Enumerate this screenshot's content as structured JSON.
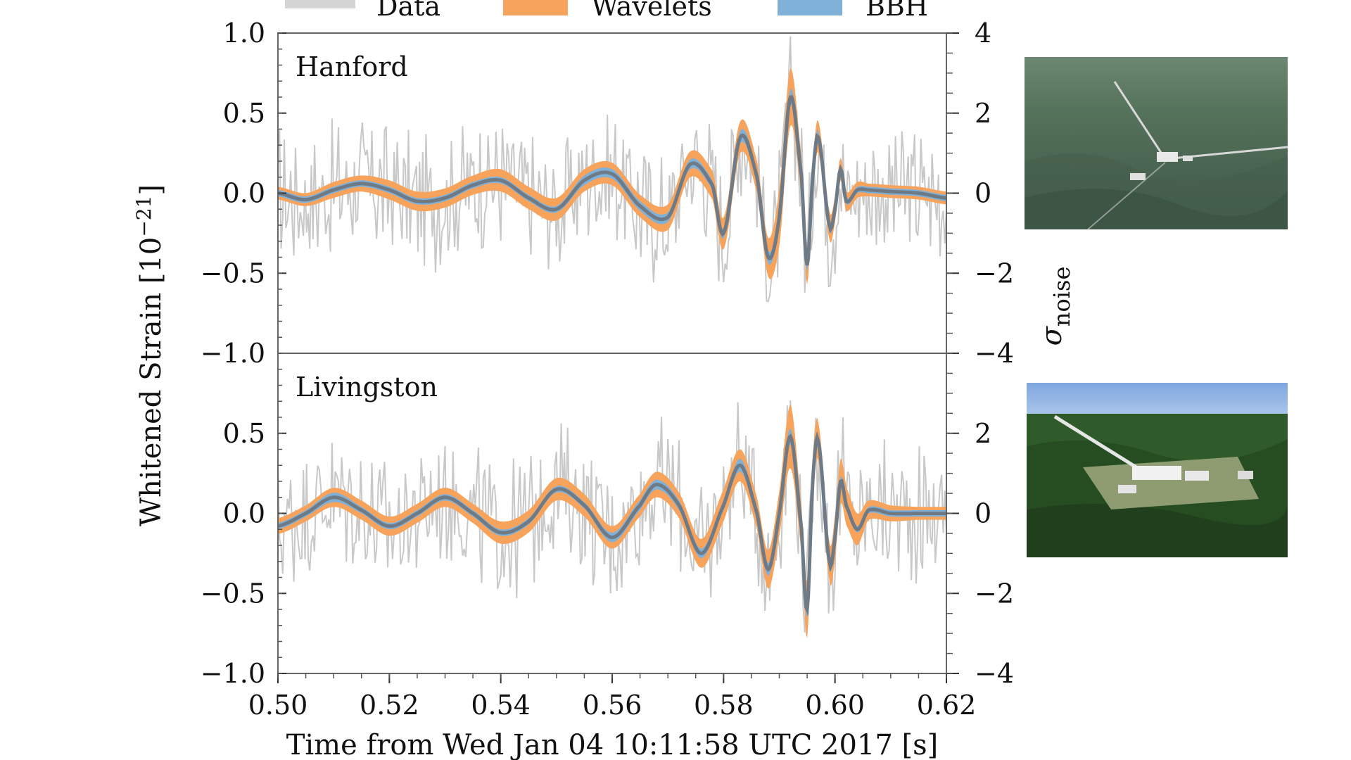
{
  "chart_data": {
    "type": "line",
    "legend": {
      "placement": "top",
      "entries": [
        {
          "name": "Data",
          "color": "#c8c8c8"
        },
        {
          "name": "Wavelets",
          "color": "#f7a35c"
        },
        {
          "name": "BBH",
          "color": "#7fb0d8"
        }
      ]
    },
    "xlabel": "Time from Wed Jan 04 10:11:58 UTC 2017 [s]",
    "ylabel": "Whitened Strain [10",
    "ylabel_exponent": "−21",
    "ylabel_suffix": "]",
    "right_ylabel": "σ",
    "right_ylabel_subscript": "noise",
    "xlim": [
      0.5,
      0.62
    ],
    "x_ticks": [
      "0.50",
      "0.52",
      "0.54",
      "0.56",
      "0.58",
      "0.60",
      "0.62"
    ],
    "grid": false,
    "colors": {
      "data": "#c8c8c8",
      "wavelets": "#f7a35c",
      "bbh": "#7fb0d8",
      "median": "#6e7b86"
    },
    "panels": [
      {
        "name": "Hanford",
        "ylim": [
          -1.0,
          1.0
        ],
        "y_ticks": [
          "1.0",
          "0.5",
          "0.0",
          "−0.5",
          "−1.0"
        ],
        "right_ylim": [
          -4,
          4
        ],
        "right_ticks": [
          "4",
          "2",
          "0",
          "−2",
          "−4"
        ],
        "signal": {
          "x": [
            0.5,
            0.505,
            0.51,
            0.515,
            0.52,
            0.525,
            0.53,
            0.535,
            0.54,
            0.545,
            0.55,
            0.555,
            0.56,
            0.565,
            0.57,
            0.574,
            0.578,
            0.58,
            0.583,
            0.586,
            0.588,
            0.59,
            0.592,
            0.594,
            0.595,
            0.596,
            0.597,
            0.599,
            0.6,
            0.601,
            0.602,
            0.604,
            0.606,
            0.61,
            0.615,
            0.62
          ],
          "y": [
            0.0,
            -0.04,
            0.02,
            0.06,
            0.02,
            -0.05,
            -0.03,
            0.05,
            0.08,
            -0.03,
            -0.1,
            0.08,
            0.12,
            -0.08,
            -0.15,
            0.18,
            0.05,
            -0.25,
            0.35,
            0.1,
            -0.4,
            -0.15,
            0.6,
            0.1,
            -0.45,
            0.1,
            0.35,
            -0.2,
            -0.1,
            0.15,
            -0.05,
            0.02,
            0.02,
            0.01,
            0.0,
            -0.03
          ],
          "wavelet_width": [
            0.04,
            0.04,
            0.05,
            0.05,
            0.06,
            0.06,
            0.06,
            0.06,
            0.07,
            0.07,
            0.07,
            0.07,
            0.07,
            0.07,
            0.08,
            0.08,
            0.09,
            0.1,
            0.1,
            0.1,
            0.12,
            0.18,
            0.18,
            0.12,
            0.12,
            0.1,
            0.1,
            0.09,
            0.08,
            0.07,
            0.06,
            0.05,
            0.04,
            0.04,
            0.04,
            0.04
          ],
          "bbh_width": [
            0.02,
            0.02,
            0.02,
            0.02,
            0.02,
            0.02,
            0.02,
            0.02,
            0.02,
            0.02,
            0.02,
            0.03,
            0.03,
            0.03,
            0.03,
            0.03,
            0.03,
            0.03,
            0.04,
            0.04,
            0.04,
            0.04,
            0.05,
            0.05,
            0.04,
            0.04,
            0.04,
            0.03,
            0.03,
            0.02,
            0.02,
            0.02,
            0.02,
            0.02,
            0.02,
            0.02
          ]
        }
      },
      {
        "name": "Livingston",
        "ylim": [
          -1.0,
          1.0
        ],
        "y_ticks": [
          "0.5",
          "0.0",
          "−0.5",
          "−1.0"
        ],
        "right_ylim": [
          -4,
          4
        ],
        "right_ticks": [
          "2",
          "0",
          "−2",
          "−4"
        ],
        "signal": {
          "x": [
            0.5,
            0.505,
            0.51,
            0.515,
            0.52,
            0.525,
            0.53,
            0.535,
            0.54,
            0.545,
            0.55,
            0.555,
            0.56,
            0.565,
            0.568,
            0.572,
            0.576,
            0.58,
            0.583,
            0.586,
            0.588,
            0.59,
            0.592,
            0.594,
            0.595,
            0.596,
            0.597,
            0.599,
            0.6,
            0.601,
            0.602,
            0.604,
            0.606,
            0.61,
            0.615,
            0.62
          ],
          "y": [
            -0.08,
            0.0,
            0.1,
            0.02,
            -0.08,
            0.0,
            0.1,
            0.0,
            -0.12,
            -0.05,
            0.15,
            0.05,
            -0.15,
            0.05,
            0.18,
            0.05,
            -0.25,
            0.05,
            0.3,
            0.0,
            -0.35,
            0.0,
            0.48,
            -0.1,
            -0.6,
            0.2,
            0.45,
            -0.3,
            -0.15,
            0.2,
            0.05,
            -0.1,
            0.02,
            0.0,
            0.0,
            0.0
          ],
          "wavelet_width": [
            0.05,
            0.05,
            0.06,
            0.06,
            0.06,
            0.06,
            0.06,
            0.06,
            0.07,
            0.07,
            0.07,
            0.07,
            0.07,
            0.07,
            0.08,
            0.08,
            0.09,
            0.1,
            0.1,
            0.1,
            0.12,
            0.14,
            0.2,
            0.14,
            0.18,
            0.14,
            0.12,
            0.12,
            0.14,
            0.14,
            0.12,
            0.1,
            0.06,
            0.05,
            0.04,
            0.04
          ],
          "bbh_width": [
            0.02,
            0.02,
            0.03,
            0.02,
            0.02,
            0.02,
            0.02,
            0.02,
            0.02,
            0.02,
            0.02,
            0.02,
            0.03,
            0.03,
            0.03,
            0.03,
            0.03,
            0.03,
            0.04,
            0.04,
            0.04,
            0.04,
            0.05,
            0.05,
            0.05,
            0.05,
            0.04,
            0.04,
            0.03,
            0.03,
            0.02,
            0.02,
            0.02,
            0.02,
            0.02,
            0.02
          ]
        }
      }
    ]
  },
  "photos": [
    {
      "name": "hanford-observatory-photo",
      "palette": {
        "ground": "#4f6b55",
        "ground_dark": "#3d5646",
        "sky": "#6c8772",
        "arm": "#d8d8d8",
        "building": "#e8e8e8"
      }
    },
    {
      "name": "livingston-observatory-photo",
      "palette": {
        "sky": "#7fa7df",
        "sky_light": "#a8c4ea",
        "forest": "#2f5a2a",
        "forest_dark": "#213f1d",
        "arm": "#e6e6e6",
        "building": "#f1f1f1",
        "clearing": "#8f9c72"
      }
    }
  ]
}
